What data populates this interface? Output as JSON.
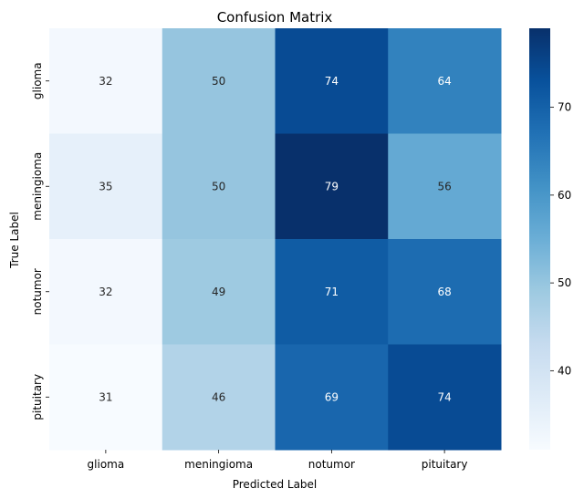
{
  "chart_data": {
    "type": "heatmap",
    "title": "Confusion Matrix",
    "xlabel": "Predicted Label",
    "ylabel": "True Label",
    "x_categories": [
      "glioma",
      "meningioma",
      "notumor",
      "pituitary"
    ],
    "y_categories": [
      "glioma",
      "meningioma",
      "notumor",
      "pituitary"
    ],
    "values": [
      [
        32,
        50,
        74,
        64
      ],
      [
        35,
        50,
        79,
        56
      ],
      [
        32,
        49,
        71,
        68
      ],
      [
        31,
        46,
        69,
        74
      ]
    ],
    "colorbar": {
      "range": [
        31,
        79
      ],
      "ticks": [
        40,
        50,
        60,
        70
      ]
    },
    "colormap": "Blues",
    "colormap_stops": [
      "#f7fbff",
      "#deebf7",
      "#c6dbef",
      "#9ecae1",
      "#6baed6",
      "#4292c6",
      "#2171b5",
      "#08519c",
      "#08306b"
    ]
  }
}
